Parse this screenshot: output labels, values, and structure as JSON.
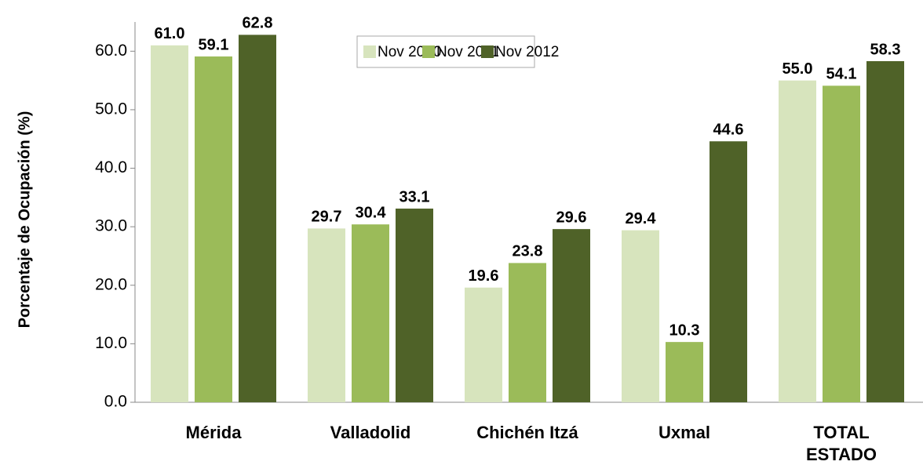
{
  "chart_data": {
    "type": "bar",
    "y_label": "Porcentaje de Ocupación (%)",
    "categories": [
      "Mérida",
      "Valladolid",
      "Chichén Itzá",
      "Uxmal",
      "TOTAL ESTADO"
    ],
    "series": [
      {
        "name": "Nov 2010",
        "color": "#d7e4bd",
        "values": [
          61.0,
          29.7,
          19.6,
          29.4,
          55.0
        ],
        "value_labels": [
          "61.0",
          "29.7",
          "19.6",
          "29.4",
          "55.0"
        ]
      },
      {
        "name": "Nov 2011",
        "color": "#9bbb59",
        "values": [
          59.1,
          30.4,
          23.8,
          10.3,
          54.1
        ],
        "value_labels": [
          "59.1",
          "30.4",
          "23.8",
          "10.3",
          "54.1"
        ]
      },
      {
        "name": "Nov 2012",
        "color": "#4f6228",
        "values": [
          62.8,
          33.1,
          29.6,
          44.6,
          58.3
        ],
        "value_labels": [
          "62.8",
          "33.1",
          "29.6",
          "44.6",
          "58.3"
        ]
      }
    ],
    "ylim": [
      0,
      65
    ],
    "yticks": [
      {
        "value": 0,
        "label": "0.0"
      },
      {
        "value": 10,
        "label": "10.0"
      },
      {
        "value": 20,
        "label": "20.0"
      },
      {
        "value": 30,
        "label": "30.0"
      },
      {
        "value": 40,
        "label": "40.0"
      },
      {
        "value": 50,
        "label": "50.0"
      },
      {
        "value": 60,
        "label": "60.0"
      }
    ],
    "legend": "top"
  }
}
